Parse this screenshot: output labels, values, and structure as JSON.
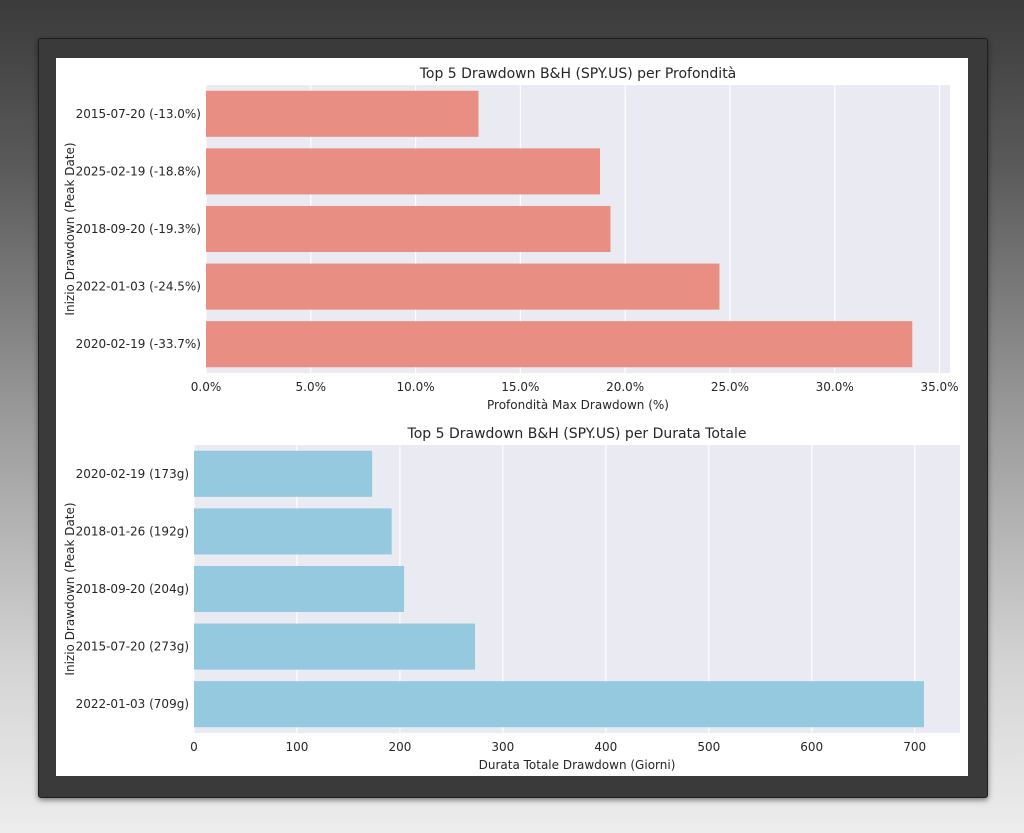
{
  "chart_data": [
    {
      "type": "bar",
      "orientation": "horizontal",
      "title": "Top 5 Drawdown B&H (SPY.US) per Profondità",
      "xlabel": "Profondità Max Drawdown (%)",
      "ylabel": "Inizio Drawdown (Peak Date)",
      "categories": [
        "2015-07-20 (-13.0%)",
        "2025-02-19 (-18.8%)",
        "2018-09-20 (-19.3%)",
        "2022-01-03 (-24.5%)",
        "2020-02-19 (-33.7%)"
      ],
      "values": [
        13.0,
        18.8,
        19.3,
        24.5,
        33.7
      ],
      "xlim": [
        0,
        35.5
      ],
      "xticks": [
        0,
        5,
        10,
        15,
        20,
        25,
        30,
        35
      ],
      "xtick_labels": [
        "0.0%",
        "5.0%",
        "10.0%",
        "15.0%",
        "20.0%",
        "25.0%",
        "30.0%",
        "35.0%"
      ],
      "color": "#e98e82",
      "grid": true
    },
    {
      "type": "bar",
      "orientation": "horizontal",
      "title": "Top 5 Drawdown B&H (SPY.US) per Durata Totale",
      "xlabel": "Durata Totale Drawdown (Giorni)",
      "ylabel": "Inizio Drawdown (Peak Date)",
      "categories": [
        "2020-02-19 (173g)",
        "2018-01-26 (192g)",
        "2018-09-20 (204g)",
        "2015-07-20 (273g)",
        "2022-01-03 (709g)"
      ],
      "values": [
        173,
        192,
        204,
        273,
        709
      ],
      "xlim": [
        0,
        744
      ],
      "xticks": [
        0,
        100,
        200,
        300,
        400,
        500,
        600,
        700
      ],
      "xtick_labels": [
        "0",
        "100",
        "200",
        "300",
        "400",
        "500",
        "600",
        "700"
      ],
      "color": "#95c9df",
      "grid": true
    }
  ]
}
